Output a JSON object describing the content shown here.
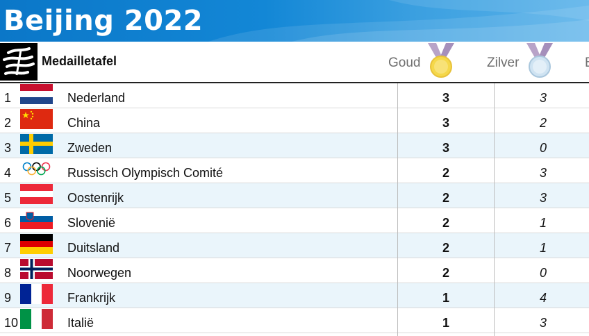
{
  "banner": {
    "title": "Beijing 2022"
  },
  "table": {
    "title": "Medailletafel",
    "columns": {
      "gold": "Goud",
      "silver": "Zilver",
      "bronze": "B"
    }
  },
  "colors": {
    "banner": "#1387d6",
    "alt_row": "#eaf5fb",
    "gold_medal": "#f5d84a",
    "silver_medal": "#cfe3f2",
    "ribbon": "#b8a3c8"
  },
  "rows": [
    {
      "rank": "1",
      "country": "Nederland",
      "gold": "3",
      "silver": "3",
      "flag": "netherlands-flag"
    },
    {
      "rank": "2",
      "country": "China",
      "gold": "3",
      "silver": "2",
      "flag": "china-flag"
    },
    {
      "rank": "3",
      "country": "Zweden",
      "gold": "3",
      "silver": "0",
      "flag": "sweden-flag"
    },
    {
      "rank": "4",
      "country": "Russisch Olympisch Comité",
      "gold": "2",
      "silver": "3",
      "flag": "olympic-rings-flag"
    },
    {
      "rank": "5",
      "country": "Oostenrijk",
      "gold": "2",
      "silver": "3",
      "flag": "austria-flag"
    },
    {
      "rank": "6",
      "country": "Slovenië",
      "gold": "2",
      "silver": "1",
      "flag": "slovenia-flag"
    },
    {
      "rank": "7",
      "country": "Duitsland",
      "gold": "2",
      "silver": "1",
      "flag": "germany-flag"
    },
    {
      "rank": "8",
      "country": "Noorwegen",
      "gold": "2",
      "silver": "0",
      "flag": "norway-flag"
    },
    {
      "rank": "9",
      "country": "Frankrijk",
      "gold": "1",
      "silver": "4",
      "flag": "france-flag"
    },
    {
      "rank": "10",
      "country": "Italië",
      "gold": "1",
      "silver": "3",
      "flag": "italy-flag"
    }
  ]
}
